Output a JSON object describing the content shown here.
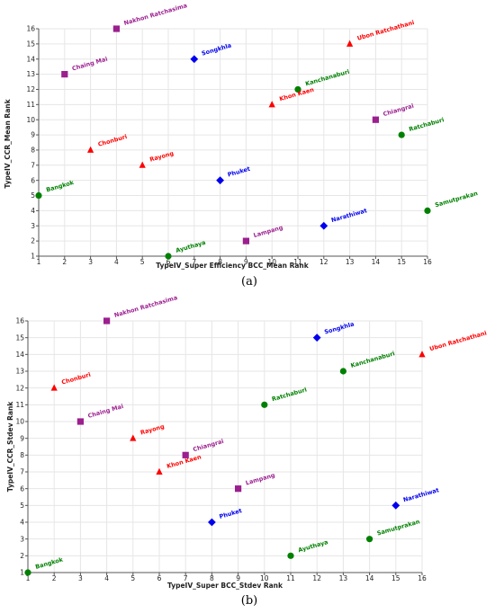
{
  "colors": {
    "red": "#ff0000",
    "purple": "#9b1f8f",
    "blue": "#0000ee",
    "green": "#008000",
    "grid": "#e6e6e6"
  },
  "chart_data": [
    {
      "type": "scatter",
      "caption": "(a)",
      "xlabel": "TypeIV_Super Efficiency BCC_Mean Rank",
      "ylabel": "TypeIV_CCR_Mean Rank",
      "xlim": [
        1,
        16
      ],
      "ylim": [
        1,
        16
      ],
      "grid": true,
      "xticks": [
        "1",
        "2",
        "3",
        "4",
        "5",
        "6",
        "7",
        "8",
        "9",
        "10",
        "11",
        "12",
        "13",
        "14",
        "15",
        "16"
      ],
      "yticks": [
        "1",
        "2",
        "3",
        "4",
        "5",
        "6",
        "7",
        "8",
        "9",
        "10",
        "11",
        "12",
        "13",
        "14",
        "15",
        "16"
      ],
      "points": [
        {
          "label": "Nakhon Ratchasima",
          "x": 4,
          "y": 16,
          "marker": "square",
          "color": "purple"
        },
        {
          "label": "Ubon Ratchathani",
          "x": 13,
          "y": 15,
          "marker": "triangle",
          "color": "red"
        },
        {
          "label": "Songkhla",
          "x": 7,
          "y": 14,
          "marker": "diamond",
          "color": "blue"
        },
        {
          "label": "Chaing Mai",
          "x": 2,
          "y": 13,
          "marker": "square",
          "color": "purple"
        },
        {
          "label": "Kanchanaburi",
          "x": 11,
          "y": 12,
          "marker": "circle",
          "color": "green"
        },
        {
          "label": "Khon Kaen",
          "x": 10,
          "y": 11,
          "marker": "triangle",
          "color": "red"
        },
        {
          "label": "Chiangrai",
          "x": 14,
          "y": 10,
          "marker": "square",
          "color": "purple"
        },
        {
          "label": "Ratchaburi",
          "x": 15,
          "y": 9,
          "marker": "circle",
          "color": "green"
        },
        {
          "label": "Chonburi",
          "x": 3,
          "y": 8,
          "marker": "triangle",
          "color": "red"
        },
        {
          "label": "Rayong",
          "x": 5,
          "y": 7,
          "marker": "triangle",
          "color": "red"
        },
        {
          "label": "Phuket",
          "x": 8,
          "y": 6,
          "marker": "diamond",
          "color": "blue"
        },
        {
          "label": "Bangkok",
          "x": 1,
          "y": 5,
          "marker": "circle",
          "color": "green"
        },
        {
          "label": "Samutprakan",
          "x": 16,
          "y": 4,
          "marker": "circle",
          "color": "green"
        },
        {
          "label": "Narathiwat",
          "x": 12,
          "y": 3,
          "marker": "diamond",
          "color": "blue"
        },
        {
          "label": "Lampang",
          "x": 9,
          "y": 2,
          "marker": "square",
          "color": "purple"
        },
        {
          "label": "Ayuthaya",
          "x": 6,
          "y": 1,
          "marker": "circle",
          "color": "green"
        }
      ]
    },
    {
      "type": "scatter",
      "caption": "(b)",
      "xlabel": "TypeIV_Super BCC_Stdev Rank",
      "ylabel": "TypeIV_CCR_Stdev Rank",
      "xlim": [
        1,
        16
      ],
      "ylim": [
        1,
        16
      ],
      "grid": true,
      "xticks": [
        "1",
        "2",
        "3",
        "4",
        "5",
        "6",
        "7",
        "8",
        "9",
        "10",
        "11",
        "12",
        "13",
        "14",
        "15",
        "16"
      ],
      "yticks": [
        "1",
        "2",
        "3",
        "4",
        "5",
        "6",
        "7",
        "8",
        "9",
        "10",
        "11",
        "12",
        "13",
        "14",
        "15",
        "16"
      ],
      "points": [
        {
          "label": "Nakhon Ratchasima",
          "x": 4,
          "y": 16,
          "marker": "square",
          "color": "purple"
        },
        {
          "label": "Songkhla",
          "x": 12,
          "y": 15,
          "marker": "diamond",
          "color": "blue"
        },
        {
          "label": "Ubon Ratchathani",
          "x": 16,
          "y": 14,
          "marker": "triangle",
          "color": "red"
        },
        {
          "label": "Kanchanaburi",
          "x": 13,
          "y": 13,
          "marker": "circle",
          "color": "green"
        },
        {
          "label": "Chonburi",
          "x": 2,
          "y": 12,
          "marker": "triangle",
          "color": "red"
        },
        {
          "label": "Ratchaburi",
          "x": 10,
          "y": 11,
          "marker": "circle",
          "color": "green"
        },
        {
          "label": "Chaing Mai",
          "x": 3,
          "y": 10,
          "marker": "square",
          "color": "purple"
        },
        {
          "label": "Rayong",
          "x": 5,
          "y": 9,
          "marker": "triangle",
          "color": "red"
        },
        {
          "label": "Chiangrai",
          "x": 7,
          "y": 8,
          "marker": "square",
          "color": "purple"
        },
        {
          "label": "Khon Kaen",
          "x": 6,
          "y": 7,
          "marker": "triangle",
          "color": "red"
        },
        {
          "label": "Lampang",
          "x": 9,
          "y": 6,
          "marker": "square",
          "color": "purple"
        },
        {
          "label": "Narathiwat",
          "x": 15,
          "y": 5,
          "marker": "diamond",
          "color": "blue"
        },
        {
          "label": "Phuket",
          "x": 8,
          "y": 4,
          "marker": "diamond",
          "color": "blue"
        },
        {
          "label": "Samutprakan",
          "x": 14,
          "y": 3,
          "marker": "circle",
          "color": "green"
        },
        {
          "label": "Ayuthaya",
          "x": 11,
          "y": 2,
          "marker": "circle",
          "color": "green"
        },
        {
          "label": "Bangkok",
          "x": 1,
          "y": 1,
          "marker": "circle",
          "color": "green"
        }
      ]
    }
  ]
}
